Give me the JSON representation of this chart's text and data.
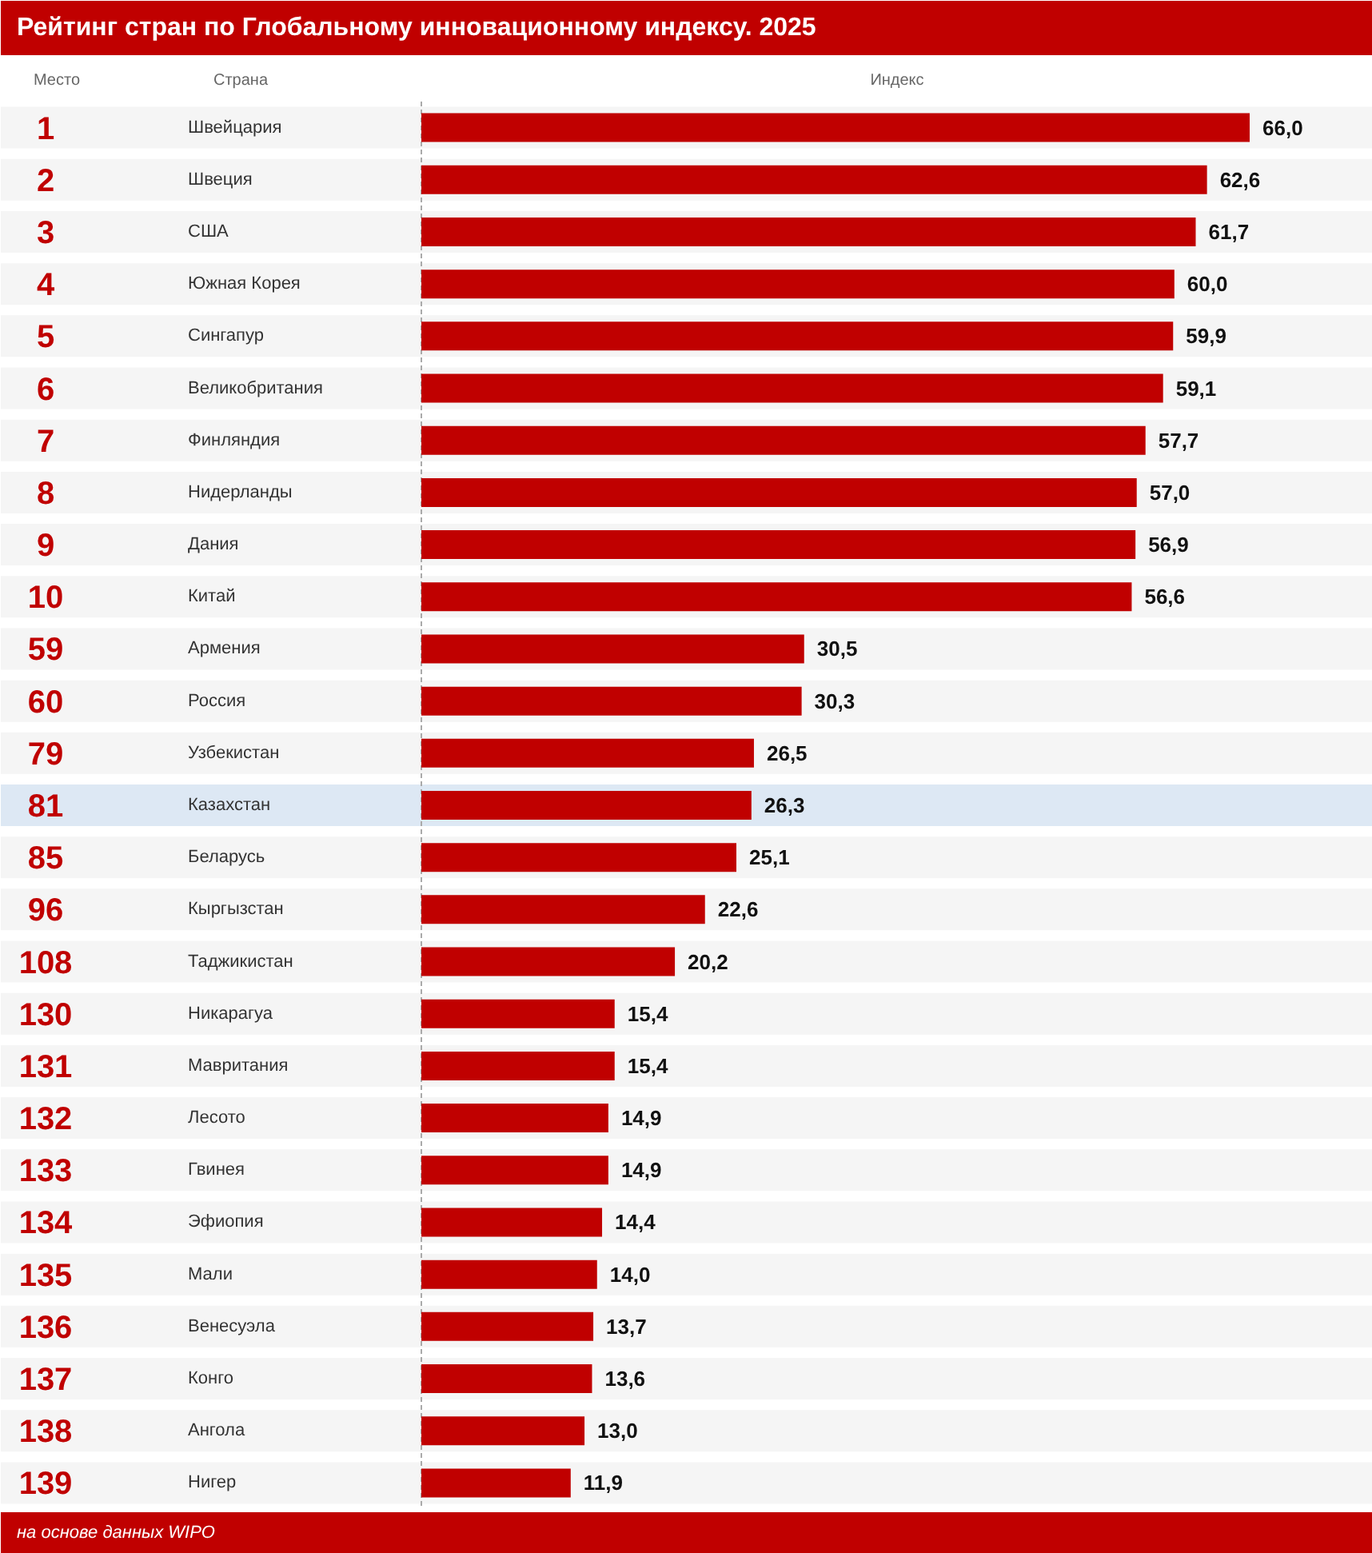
{
  "chart_data": {
    "type": "bar",
    "orientation": "horizontal",
    "title": "Рейтинг стран по Глобальному инновационному индексу. 2025",
    "xlabel": "Индекс",
    "ylabel": "Страна",
    "categories": [
      "Швейцария",
      "Швеция",
      "США",
      "Южная Корея",
      "Сингапур",
      "Великобритания",
      "Финляндия",
      "Нидерланды",
      "Дания",
      "Китай",
      "Армения",
      "Россия",
      "Узбекистан",
      "Казахстан",
      "Беларусь",
      "Кыргызстан",
      "Таджикистан",
      "Никарагуа",
      "Мавритания",
      "Лесото",
      "Гвинея",
      "Эфиопия",
      "Мали",
      "Венесуэла",
      "Конго",
      "Ангола",
      "Нигер"
    ],
    "values": [
      66.0,
      62.6,
      61.7,
      60.0,
      59.9,
      59.1,
      57.7,
      57.0,
      56.9,
      56.6,
      30.5,
      30.3,
      26.5,
      26.3,
      25.1,
      22.6,
      20.2,
      15.4,
      15.4,
      14.9,
      14.9,
      14.4,
      14.0,
      13.7,
      13.6,
      13.0,
      11.9
    ],
    "value_labels": [
      "66,0",
      "62,6",
      "61,7",
      "60,0",
      "59,9",
      "59,1",
      "57,7",
      "57,0",
      "56,9",
      "56,6",
      "30,5",
      "30,3",
      "26,5",
      "26,3",
      "25,1",
      "22,6",
      "20,2",
      "15,4",
      "15,4",
      "14,9",
      "14,9",
      "14,4",
      "14,0",
      "13,7",
      "13,6",
      "13,0",
      "11,9"
    ],
    "color": "#c00000",
    "bands": [
      {
        "axis": "y",
        "from": "Казахстан",
        "to": "Казахстан",
        "color": "#dde8f4"
      }
    ],
    "annotations": [
      "Место",
      "1",
      "2",
      "3",
      "4",
      "5",
      "6",
      "7",
      "8",
      "9",
      "10",
      "59",
      "60",
      "79",
      "81",
      "85",
      "96",
      "108",
      "130",
      "131",
      "132",
      "133",
      "134",
      "135",
      "136",
      "137",
      "138",
      "139",
      "на основе данных WIPO"
    ]
  }
}
